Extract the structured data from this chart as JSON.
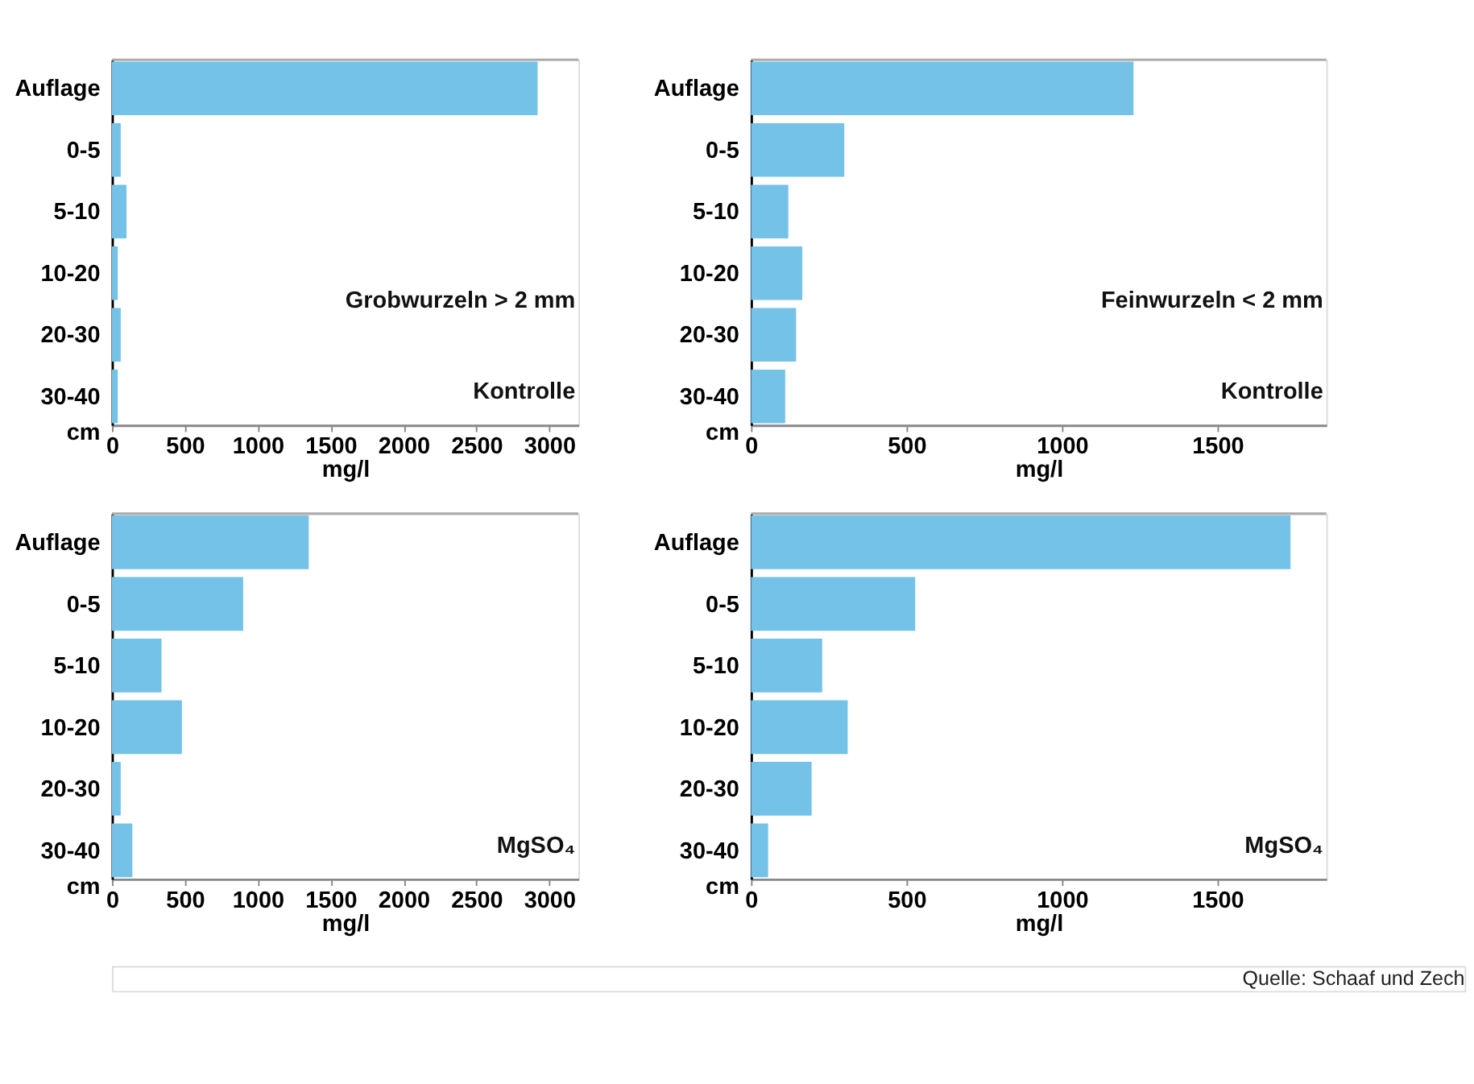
{
  "chart_data": [
    {
      "type": "bar",
      "orientation": "horizontal",
      "categories": [
        "Auflage",
        "0-5",
        "5-10",
        "10-20",
        "20-30",
        "30-40"
      ],
      "ylabel": "cm",
      "xlabel": "mg/l",
      "color": "#74c2e8",
      "values": [
        2920,
        60,
        100,
        40,
        60,
        40
      ],
      "xlim": [
        0,
        3200
      ],
      "xticks": [
        0,
        500,
        1000,
        1500,
        2000,
        2500,
        3000
      ],
      "annotations": [
        "Grobwurzeln > 2 mm",
        "Kontrolle"
      ]
    },
    {
      "type": "bar",
      "orientation": "horizontal",
      "categories": [
        "Auflage",
        "0-5",
        "5-10",
        "10-20",
        "20-30",
        "30-40"
      ],
      "ylabel": "cm",
      "xlabel": "mg/l",
      "color": "#74c2e8",
      "values": [
        1230,
        300,
        120,
        165,
        145,
        110
      ],
      "xlim": [
        0,
        1850
      ],
      "xticks": [
        0,
        500,
        1000,
        1500
      ],
      "annotations": [
        "Feinwurzeln < 2 mm",
        "Kontrolle"
      ]
    },
    {
      "type": "bar",
      "orientation": "horizontal",
      "categories": [
        "Auflage",
        "0-5",
        "5-10",
        "10-20",
        "20-30",
        "30-40"
      ],
      "ylabel": "cm",
      "xlabel": "mg/l",
      "color": "#74c2e8",
      "values": [
        1350,
        900,
        340,
        480,
        60,
        140
      ],
      "xlim": [
        0,
        3200
      ],
      "xticks": [
        0,
        500,
        1000,
        1500,
        2000,
        2500,
        3000
      ],
      "annotations": [
        "MgSO₄"
      ]
    },
    {
      "type": "bar",
      "orientation": "horizontal",
      "categories": [
        "Auflage",
        "0-5",
        "5-10",
        "10-20",
        "20-30",
        "30-40"
      ],
      "ylabel": "cm",
      "xlabel": "mg/l",
      "color": "#74c2e8",
      "values": [
        1735,
        528,
        229,
        311,
        195,
        55
      ],
      "xlim": [
        0,
        1850
      ],
      "xticks": [
        0,
        500,
        1000,
        1500
      ],
      "annotations": [
        "MgSO₄"
      ]
    },
    {
      "type": "other",
      "annotations": [
        "Quelle: Schaaf und Zech"
      ]
    }
  ]
}
